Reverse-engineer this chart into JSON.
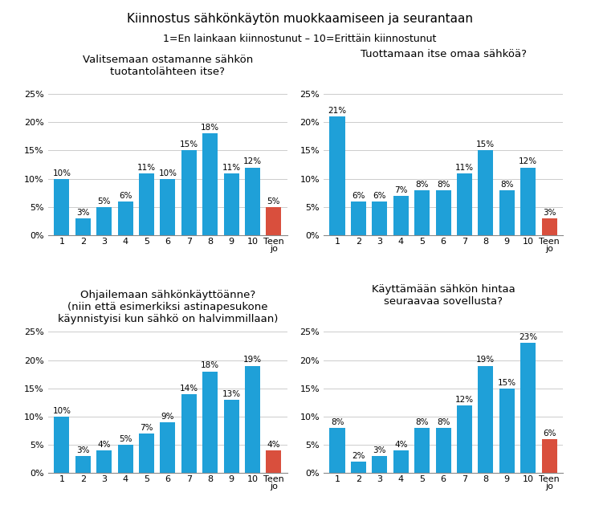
{
  "title": "Kiinnostus sähkönkäytön muokkaamiseen ja seurantaan",
  "subtitle": "1=En lainkaan kiinnostunut – 10=Erittäin kiinnostunut",
  "subplots": [
    {
      "title": "Valitsemaan ostamanne sähkön\ntuotantolähteen itse?",
      "values": [
        10,
        3,
        5,
        6,
        11,
        10,
        15,
        18,
        11,
        12,
        5
      ],
      "labels": [
        "1",
        "2",
        "3",
        "4",
        "5",
        "6",
        "7",
        "8",
        "9",
        "10",
        "Teen\njo"
      ],
      "bar_colors": [
        "#1FA0D8",
        "#1FA0D8",
        "#1FA0D8",
        "#1FA0D8",
        "#1FA0D8",
        "#1FA0D8",
        "#1FA0D8",
        "#1FA0D8",
        "#1FA0D8",
        "#1FA0D8",
        "#D94F3D"
      ],
      "ylim": [
        0,
        27
      ],
      "yticks": [
        0,
        5,
        10,
        15,
        20,
        25
      ]
    },
    {
      "title": "Tuottamaan itse omaa sähköä?",
      "values": [
        21,
        6,
        6,
        7,
        8,
        8,
        11,
        15,
        8,
        12,
        3
      ],
      "labels": [
        "1",
        "2",
        "3",
        "4",
        "5",
        "6",
        "7",
        "8",
        "9",
        "10",
        "Teen\njo"
      ],
      "bar_colors": [
        "#1FA0D8",
        "#1FA0D8",
        "#1FA0D8",
        "#1FA0D8",
        "#1FA0D8",
        "#1FA0D8",
        "#1FA0D8",
        "#1FA0D8",
        "#1FA0D8",
        "#1FA0D8",
        "#D94F3D"
      ],
      "ylim": [
        0,
        27
      ],
      "yticks": [
        0,
        5,
        10,
        15,
        20,
        25
      ]
    },
    {
      "title": "Ohjailemaan sähkönkäyttöänne?\n(niin että esimerkiksi astinapesukone\nkäynnistyisi kun sähkö on halvimmillaan)",
      "values": [
        10,
        3,
        4,
        5,
        7,
        9,
        14,
        18,
        13,
        19,
        4
      ],
      "labels": [
        "1",
        "2",
        "3",
        "4",
        "5",
        "6",
        "7",
        "8",
        "9",
        "10",
        "Teen\njo"
      ],
      "bar_colors": [
        "#1FA0D8",
        "#1FA0D8",
        "#1FA0D8",
        "#1FA0D8",
        "#1FA0D8",
        "#1FA0D8",
        "#1FA0D8",
        "#1FA0D8",
        "#1FA0D8",
        "#1FA0D8",
        "#D94F3D"
      ],
      "ylim": [
        0,
        27
      ],
      "yticks": [
        0,
        5,
        10,
        15,
        20,
        25
      ]
    },
    {
      "title": "Käyttämään sähkön hintaa\nseuraavaa sovellusta?",
      "values": [
        8,
        2,
        3,
        4,
        8,
        8,
        12,
        19,
        15,
        23,
        6
      ],
      "labels": [
        "1",
        "2",
        "3",
        "4",
        "5",
        "6",
        "7",
        "8",
        "9",
        "10",
        "Teen\njo"
      ],
      "bar_colors": [
        "#1FA0D8",
        "#1FA0D8",
        "#1FA0D8",
        "#1FA0D8",
        "#1FA0D8",
        "#1FA0D8",
        "#1FA0D8",
        "#1FA0D8",
        "#1FA0D8",
        "#1FA0D8",
        "#D94F3D"
      ],
      "ylim": [
        0,
        27
      ],
      "yticks": [
        0,
        5,
        10,
        15,
        20,
        25
      ]
    }
  ],
  "tick_fontsize": 8,
  "title_fontsize": 11,
  "subtitle_fontsize": 9,
  "subplot_title_fontsize": 9.5,
  "bar_label_fontsize": 7.5,
  "background_color": "#FFFFFF"
}
